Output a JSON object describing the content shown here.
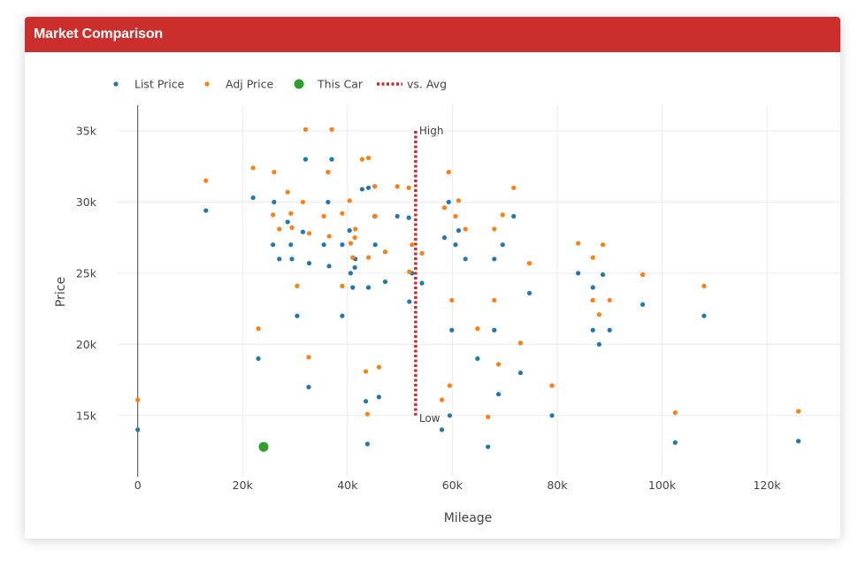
{
  "card": {
    "title": "Market Comparison"
  },
  "colors": {
    "header": "#cc2f2b",
    "list": "#1f77b4",
    "adj": "#ff7f0e",
    "this_car": "#2ca02c",
    "avg": "#d62728"
  },
  "chart_data": {
    "type": "scatter",
    "title": "",
    "xlabel": "Mileage",
    "ylabel": "Price",
    "xlim": [
      -4000,
      134000
    ],
    "ylim": [
      10700,
      36800
    ],
    "x_ticks": [
      0,
      20000,
      40000,
      60000,
      80000,
      100000,
      120000
    ],
    "x_tick_labels": [
      "0",
      "20k",
      "40k",
      "60k",
      "80k",
      "100k",
      "120k"
    ],
    "y_ticks": [
      15000,
      20000,
      25000,
      30000,
      35000
    ],
    "y_tick_labels": [
      "15k",
      "20k",
      "25k",
      "30k",
      "35k"
    ],
    "grid": true,
    "legend_position": "top",
    "legend": [
      "List Price",
      "Adj Price",
      "This Car",
      "vs. Avg"
    ],
    "series": [
      {
        "name": "List Price",
        "color": "#1f77b4",
        "points": [
          [
            0,
            14000
          ],
          [
            13000,
            29400
          ],
          [
            22000,
            30300
          ],
          [
            23000,
            19000
          ],
          [
            25800,
            27000
          ],
          [
            26000,
            30000
          ],
          [
            27000,
            26000
          ],
          [
            28600,
            28600
          ],
          [
            29200,
            27000
          ],
          [
            29400,
            26000
          ],
          [
            30400,
            22000
          ],
          [
            31500,
            27900
          ],
          [
            32000,
            33000
          ],
          [
            32700,
            25700
          ],
          [
            32600,
            17000
          ],
          [
            35500,
            27000
          ],
          [
            36300,
            30000
          ],
          [
            36500,
            25500
          ],
          [
            37000,
            33000
          ],
          [
            39000,
            22000
          ],
          [
            39000,
            27000
          ],
          [
            40400,
            28000
          ],
          [
            40600,
            25000
          ],
          [
            41000,
            24000
          ],
          [
            41400,
            25400
          ],
          [
            41500,
            26000
          ],
          [
            42800,
            30900
          ],
          [
            43500,
            16000
          ],
          [
            43800,
            13000
          ],
          [
            44000,
            31000
          ],
          [
            44000,
            24000
          ],
          [
            45200,
            29000
          ],
          [
            45300,
            27000
          ],
          [
            46000,
            16300
          ],
          [
            47200,
            24400
          ],
          [
            49500,
            29000
          ],
          [
            51800,
            23000
          ],
          [
            51700,
            28900
          ],
          [
            52300,
            25000
          ],
          [
            54200,
            24300
          ],
          [
            58000,
            14000
          ],
          [
            58500,
            27500
          ],
          [
            59300,
            30000
          ],
          [
            59500,
            15000
          ],
          [
            59900,
            21000
          ],
          [
            60600,
            27000
          ],
          [
            61200,
            28000
          ],
          [
            62500,
            26000
          ],
          [
            64800,
            19000
          ],
          [
            66800,
            12800
          ],
          [
            68000,
            26000
          ],
          [
            68000,
            21000
          ],
          [
            68800,
            16500
          ],
          [
            69600,
            27000
          ],
          [
            71700,
            29000
          ],
          [
            73000,
            18000
          ],
          [
            74700,
            23600
          ],
          [
            79000,
            15000
          ],
          [
            84000,
            25000
          ],
          [
            86800,
            24000
          ],
          [
            86800,
            21000
          ],
          [
            88000,
            20000
          ],
          [
            88700,
            24900
          ],
          [
            90000,
            21000
          ],
          [
            96300,
            22800
          ],
          [
            102500,
            13100
          ],
          [
            108000,
            22000
          ],
          [
            126000,
            13200
          ]
        ]
      },
      {
        "name": "Adj Price",
        "color": "#ff7f0e",
        "points": [
          [
            0,
            16100
          ],
          [
            13000,
            31500
          ],
          [
            22000,
            32400
          ],
          [
            23000,
            21100
          ],
          [
            25800,
            29100
          ],
          [
            26000,
            32100
          ],
          [
            27000,
            28100
          ],
          [
            28600,
            30700
          ],
          [
            29200,
            29200
          ],
          [
            29400,
            28200
          ],
          [
            30400,
            24100
          ],
          [
            31500,
            30000
          ],
          [
            32000,
            35100
          ],
          [
            32700,
            27800
          ],
          [
            32600,
            19100
          ],
          [
            35500,
            29000
          ],
          [
            36300,
            32100
          ],
          [
            36500,
            27600
          ],
          [
            37000,
            35100
          ],
          [
            39000,
            24100
          ],
          [
            39000,
            29200
          ],
          [
            40400,
            30100
          ],
          [
            40600,
            27100
          ],
          [
            41000,
            26100
          ],
          [
            41400,
            27500
          ],
          [
            41500,
            28100
          ],
          [
            42800,
            33000
          ],
          [
            43500,
            18100
          ],
          [
            43800,
            15100
          ],
          [
            44000,
            33100
          ],
          [
            44000,
            26100
          ],
          [
            45200,
            31100
          ],
          [
            45300,
            29000
          ],
          [
            46000,
            18400
          ],
          [
            47200,
            26500
          ],
          [
            49500,
            31100
          ],
          [
            51800,
            25100
          ],
          [
            51700,
            31000
          ],
          [
            52300,
            27000
          ],
          [
            54200,
            26400
          ],
          [
            58000,
            16100
          ],
          [
            58500,
            29600
          ],
          [
            59300,
            32100
          ],
          [
            59500,
            17100
          ],
          [
            59900,
            23100
          ],
          [
            60600,
            29000
          ],
          [
            61200,
            30100
          ],
          [
            62500,
            28100
          ],
          [
            64800,
            21100
          ],
          [
            66800,
            14900
          ],
          [
            68000,
            28100
          ],
          [
            68000,
            23100
          ],
          [
            68800,
            18600
          ],
          [
            69600,
            29100
          ],
          [
            71700,
            31000
          ],
          [
            73000,
            20100
          ],
          [
            74700,
            25700
          ],
          [
            79000,
            17100
          ],
          [
            84000,
            27100
          ],
          [
            86800,
            26100
          ],
          [
            86800,
            23100
          ],
          [
            88000,
            22100
          ],
          [
            88700,
            27000
          ],
          [
            90000,
            23100
          ],
          [
            96300,
            24900
          ],
          [
            102500,
            15200
          ],
          [
            108000,
            24100
          ],
          [
            126000,
            15300
          ]
        ]
      }
    ],
    "this_car": {
      "name": "This Car",
      "color": "#2ca02c",
      "x": 24000,
      "y": 12800
    },
    "avg_line": {
      "name": "vs. Avg",
      "color": "#d62728",
      "x": 53000,
      "y_high": 35000,
      "y_low": 15000,
      "label_high": "High",
      "label_low": "Low"
    },
    "zero_line_x": 0
  }
}
